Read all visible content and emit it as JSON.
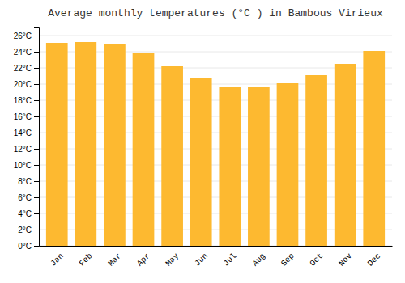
{
  "chart_data": {
    "type": "bar",
    "title": "Average monthly temperatures (°C ) in Bambous Virieux",
    "categories": [
      "Jan",
      "Feb",
      "Mar",
      "Apr",
      "May",
      "Jun",
      "Jul",
      "Aug",
      "Sep",
      "Oct",
      "Nov",
      "Dec"
    ],
    "values": [
      25.1,
      25.2,
      25.0,
      23.9,
      22.2,
      20.7,
      19.7,
      19.6,
      20.1,
      21.1,
      22.5,
      24.1
    ],
    "color": "#FDB930",
    "ylim": [
      0,
      27
    ],
    "yticks": [
      {
        "value": 0,
        "label": "0°C"
      },
      {
        "value": 2,
        "label": "2°C"
      },
      {
        "value": 4,
        "label": "4°C"
      },
      {
        "value": 6,
        "label": "6°C"
      },
      {
        "value": 8,
        "label": "8°C"
      },
      {
        "value": 10,
        "label": "10°C"
      },
      {
        "value": 12,
        "label": "12°C"
      },
      {
        "value": 14,
        "label": "14°C"
      },
      {
        "value": 16,
        "label": "16°C"
      },
      {
        "value": 18,
        "label": "18°C"
      },
      {
        "value": 20,
        "label": "20°C"
      },
      {
        "value": 22,
        "label": "22°C"
      },
      {
        "value": 24,
        "label": "24°C"
      },
      {
        "value": 26,
        "label": "26°C"
      }
    ],
    "grid": true
  }
}
